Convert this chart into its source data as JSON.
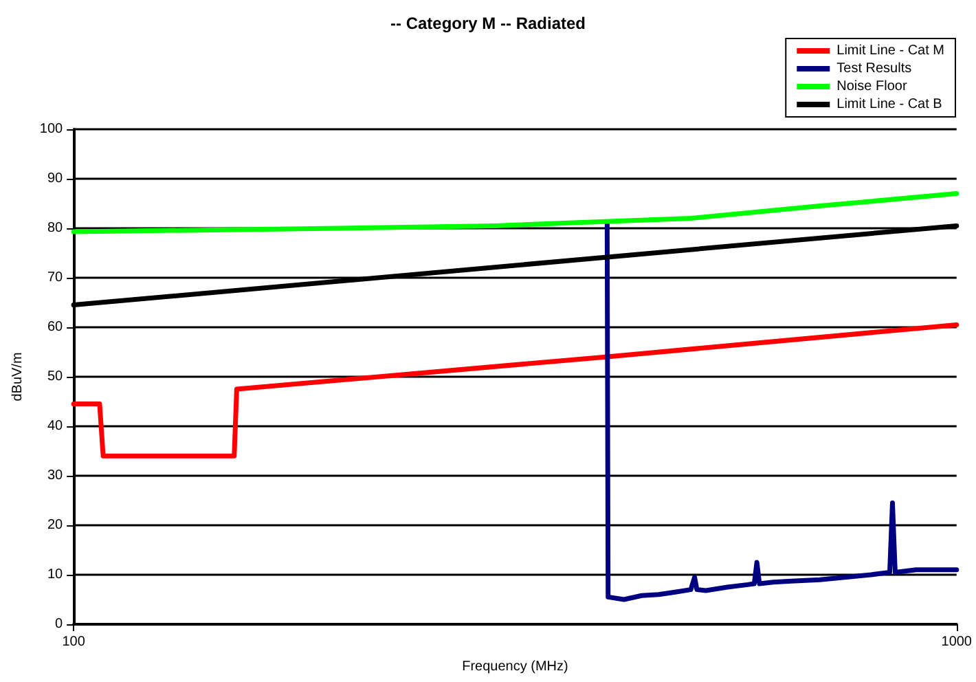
{
  "chart_data": {
    "type": "line",
    "title": "-- Category M -- Radiated",
    "xlabel": "Frequency (MHz)",
    "ylabel": "dBuV/m",
    "log": "x",
    "xlim": [
      100,
      1000
    ],
    "xticks": [
      100,
      1000
    ],
    "ylim": [
      0,
      100
    ],
    "yticks": [
      0,
      10,
      20,
      30,
      40,
      50,
      60,
      70,
      80,
      90,
      100
    ],
    "grid": "y",
    "legend": "top right",
    "marker": "none",
    "line_style": "solid",
    "series": [
      {
        "name": "Limit Line - Cat M",
        "color": "#ff0000",
        "x": [
          100,
          107,
          108,
          152,
          153,
          400,
          1000
        ],
        "values": [
          44.5,
          44.5,
          34,
          34,
          47.5,
          54,
          60.5
        ]
      },
      {
        "name": "Test Results",
        "color": "#000080",
        "x": [
          402,
          403,
          420,
          440,
          460,
          480,
          500,
          505,
          508,
          520,
          550,
          580,
          590,
          594,
          598,
          620,
          650,
          700,
          750,
          800,
          840,
          846,
          852,
          900,
          950,
          1000
        ],
        "values": [
          81,
          5.5,
          5,
          5.8,
          6,
          6.5,
          7,
          9.5,
          7,
          6.8,
          7.5,
          8,
          8.2,
          12.5,
          8.2,
          8.5,
          8.7,
          9,
          9.5,
          10,
          10.5,
          24.5,
          10.5,
          11,
          11,
          11
        ]
      },
      {
        "name": "Noise Floor",
        "color": "#00ff00",
        "x": [
          100,
          200,
          300,
          500,
          700,
          1000
        ],
        "values": [
          79.3,
          80,
          80.5,
          82,
          84.5,
          87
        ]
      },
      {
        "name": "Limit Line - Cat B",
        "color": "#000000",
        "x": [
          100,
          1000
        ],
        "values": [
          64.5,
          80.5
        ]
      }
    ]
  }
}
